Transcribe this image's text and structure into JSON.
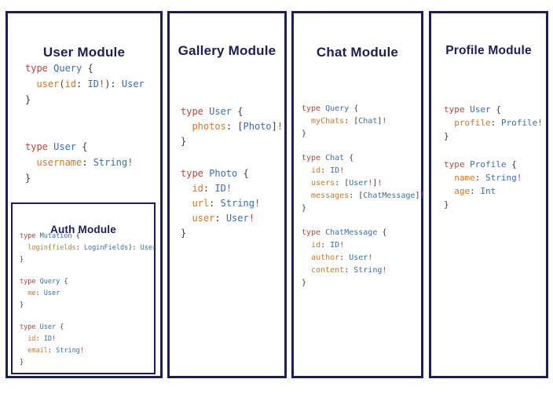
{
  "palette": {
    "navy": "#1d1f55",
    "keyword": "#b04a40",
    "type_name": "#3a6fae",
    "field": "#c97a2e",
    "punct": "#3d3d3d",
    "bang": "#b8443c",
    "bg": "#ffffff"
  },
  "modules": [
    {
      "title": "User Module",
      "blocks": [
        [
          [
            [
              "kw",
              "type "
            ],
            [
              "ty",
              "Query "
            ],
            [
              "pn",
              "{"
            ]
          ],
          [
            [
              "pn",
              "  "
            ],
            [
              "fld",
              "user"
            ],
            [
              "pn",
              "("
            ],
            [
              "fld",
              "id"
            ],
            [
              "pn",
              ": "
            ],
            [
              "ty",
              "ID"
            ],
            [
              "bang",
              "!"
            ],
            [
              "pn",
              "): "
            ],
            [
              "ty",
              "User"
            ]
          ],
          [
            [
              "pn",
              "}"
            ]
          ]
        ],
        [
          [
            [
              "kw",
              "type "
            ],
            [
              "ty",
              "User "
            ],
            [
              "pn",
              "{"
            ]
          ],
          [
            [
              "pn",
              "  "
            ],
            [
              "fld",
              "username"
            ],
            [
              "pn",
              ": "
            ],
            [
              "ty",
              "String"
            ],
            [
              "bang",
              "!"
            ]
          ],
          [
            [
              "pn",
              "}"
            ]
          ]
        ]
      ],
      "inner": {
        "title": "Auth Module",
        "blocks": [
          [
            [
              [
                "kw",
                "type "
              ],
              [
                "ty",
                "Mutation "
              ],
              [
                "pn",
                "{"
              ]
            ],
            [
              [
                "pn",
                "  "
              ],
              [
                "fld",
                "login"
              ],
              [
                "pn",
                "("
              ],
              [
                "fld",
                "fields"
              ],
              [
                "pn",
                ": "
              ],
              [
                "ty",
                "LoginFields"
              ],
              [
                "pn",
                "): "
              ],
              [
                "ty",
                "User"
              ]
            ],
            [
              [
                "pn",
                "}"
              ]
            ]
          ],
          [
            [
              [
                "kw",
                "type "
              ],
              [
                "ty",
                "Query "
              ],
              [
                "pn",
                "{"
              ]
            ],
            [
              [
                "pn",
                "  "
              ],
              [
                "fld",
                "me"
              ],
              [
                "pn",
                ": "
              ],
              [
                "ty",
                "User"
              ]
            ],
            [
              [
                "pn",
                "}"
              ]
            ]
          ],
          [
            [
              [
                "kw",
                "type "
              ],
              [
                "ty",
                "User "
              ],
              [
                "pn",
                "{"
              ]
            ],
            [
              [
                "pn",
                "  "
              ],
              [
                "fld",
                "id"
              ],
              [
                "pn",
                ": "
              ],
              [
                "ty",
                "ID"
              ],
              [
                "bang",
                "!"
              ]
            ],
            [
              [
                "pn",
                "  "
              ],
              [
                "fld",
                "email"
              ],
              [
                "pn",
                ": "
              ],
              [
                "ty",
                "String"
              ],
              [
                "bang",
                "!"
              ]
            ],
            [
              [
                "pn",
                "}"
              ]
            ]
          ]
        ]
      }
    },
    {
      "title": "Gallery Module",
      "blocks": [
        [
          [
            [
              "kw",
              "type "
            ],
            [
              "ty",
              "User "
            ],
            [
              "pn",
              "{"
            ]
          ],
          [
            [
              "pn",
              "  "
            ],
            [
              "fld",
              "photos"
            ],
            [
              "pn",
              ": ["
            ],
            [
              "ty",
              "Photo"
            ],
            [
              "pn",
              "]"
            ],
            [
              "bang",
              "!"
            ]
          ],
          [
            [
              "pn",
              "}"
            ]
          ]
        ],
        [
          [
            [
              "kw",
              "type "
            ],
            [
              "ty",
              "Photo "
            ],
            [
              "pn",
              "{"
            ]
          ],
          [
            [
              "pn",
              "  "
            ],
            [
              "fld",
              "id"
            ],
            [
              "pn",
              ": "
            ],
            [
              "ty",
              "ID"
            ],
            [
              "bang",
              "!"
            ]
          ],
          [
            [
              "pn",
              "  "
            ],
            [
              "fld",
              "url"
            ],
            [
              "pn",
              ": "
            ],
            [
              "ty",
              "String"
            ],
            [
              "bang",
              "!"
            ]
          ],
          [
            [
              "pn",
              "  "
            ],
            [
              "fld",
              "user"
            ],
            [
              "pn",
              ": "
            ],
            [
              "ty",
              "User"
            ],
            [
              "bang",
              "!"
            ]
          ],
          [
            [
              "pn",
              "}"
            ]
          ]
        ]
      ]
    },
    {
      "title": "Chat Module",
      "blocks": [
        [
          [
            [
              "kw",
              "type "
            ],
            [
              "ty",
              "Query "
            ],
            [
              "pn",
              "{"
            ]
          ],
          [
            [
              "pn",
              "  "
            ],
            [
              "fld",
              "myChats"
            ],
            [
              "pn",
              ": ["
            ],
            [
              "ty",
              "Chat"
            ],
            [
              "pn",
              "]"
            ],
            [
              "bang",
              "!"
            ]
          ],
          [
            [
              "pn",
              "}"
            ]
          ]
        ],
        [
          [
            [
              "kw",
              "type "
            ],
            [
              "ty",
              "Chat "
            ],
            [
              "pn",
              "{"
            ]
          ],
          [
            [
              "pn",
              "  "
            ],
            [
              "fld",
              "id"
            ],
            [
              "pn",
              ": "
            ],
            [
              "ty",
              "ID"
            ],
            [
              "bang",
              "!"
            ]
          ],
          [
            [
              "pn",
              "  "
            ],
            [
              "fld",
              "users"
            ],
            [
              "pn",
              ": ["
            ],
            [
              "ty",
              "User"
            ],
            [
              "bang",
              "!"
            ],
            [
              "pn",
              "]"
            ],
            [
              "bang",
              "!"
            ]
          ],
          [
            [
              "pn",
              "  "
            ],
            [
              "fld",
              "messages"
            ],
            [
              "pn",
              ": ["
            ],
            [
              "ty",
              "ChatMessage"
            ],
            [
              "pn",
              "]"
            ],
            [
              "bang",
              "!"
            ]
          ],
          [
            [
              "pn",
              "}"
            ]
          ]
        ],
        [
          [
            [
              "kw",
              "type "
            ],
            [
              "ty",
              "ChatMessage "
            ],
            [
              "pn",
              "{"
            ]
          ],
          [
            [
              "pn",
              "  "
            ],
            [
              "fld",
              "id"
            ],
            [
              "pn",
              ": "
            ],
            [
              "ty",
              "ID"
            ],
            [
              "bang",
              "!"
            ]
          ],
          [
            [
              "pn",
              "  "
            ],
            [
              "fld",
              "author"
            ],
            [
              "pn",
              ": "
            ],
            [
              "ty",
              "User"
            ],
            [
              "bang",
              "!"
            ]
          ],
          [
            [
              "pn",
              "  "
            ],
            [
              "fld",
              "content"
            ],
            [
              "pn",
              ": "
            ],
            [
              "ty",
              "String"
            ],
            [
              "bang",
              "!"
            ]
          ],
          [
            [
              "pn",
              "}"
            ]
          ]
        ]
      ]
    },
    {
      "title": "Profile Module",
      "blocks": [
        [
          [
            [
              "kw",
              "type "
            ],
            [
              "ty",
              "User "
            ],
            [
              "pn",
              "{"
            ]
          ],
          [
            [
              "pn",
              "  "
            ],
            [
              "fld",
              "profile"
            ],
            [
              "pn",
              ": "
            ],
            [
              "ty",
              "Profile"
            ],
            [
              "bang",
              "!"
            ]
          ],
          [
            [
              "pn",
              "}"
            ]
          ]
        ],
        [
          [
            [
              "kw",
              "type "
            ],
            [
              "ty",
              "Profile "
            ],
            [
              "pn",
              "{"
            ]
          ],
          [
            [
              "pn",
              "  "
            ],
            [
              "fld",
              "name"
            ],
            [
              "pn",
              ": "
            ],
            [
              "ty",
              "String"
            ],
            [
              "bang",
              "!"
            ]
          ],
          [
            [
              "pn",
              "  "
            ],
            [
              "fld",
              "age"
            ],
            [
              "pn",
              ": "
            ],
            [
              "ty",
              "Int"
            ]
          ],
          [
            [
              "pn",
              "}"
            ]
          ]
        ]
      ]
    }
  ]
}
